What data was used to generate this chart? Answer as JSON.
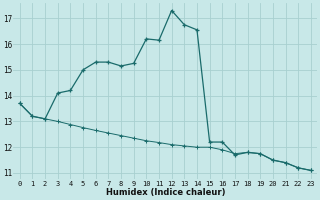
{
  "xlabel": "Humidex (Indice chaleur)",
  "background_color": "#c8e8e8",
  "grid_color": "#a8d0d0",
  "line_color": "#1a6b6b",
  "xlim": [
    -0.5,
    23.5
  ],
  "ylim": [
    10.75,
    17.6
  ],
  "yticks": [
    11,
    12,
    13,
    14,
    15,
    16,
    17
  ],
  "xticks": [
    0,
    1,
    2,
    3,
    4,
    5,
    6,
    7,
    8,
    9,
    10,
    11,
    12,
    13,
    14,
    15,
    16,
    17,
    18,
    19,
    20,
    21,
    22,
    23
  ],
  "curve_peaked_x": [
    0,
    1,
    2,
    3,
    4,
    5,
    6,
    7,
    8,
    9,
    10,
    11,
    12,
    13,
    14,
    15,
    16,
    17,
    18,
    19,
    20,
    21,
    22,
    23
  ],
  "curve_peaked_y": [
    13.7,
    13.2,
    13.1,
    14.1,
    14.2,
    15.0,
    15.3,
    15.3,
    15.15,
    15.25,
    16.2,
    16.15,
    17.3,
    16.75,
    16.55,
    12.2,
    12.2,
    11.7,
    11.8,
    11.75,
    11.5,
    11.4,
    11.2,
    11.1
  ],
  "curve_flat_x": [
    0,
    1,
    2,
    3,
    4,
    5,
    6,
    7,
    8,
    9,
    10,
    11,
    12,
    13,
    14,
    15,
    16,
    17,
    18,
    19,
    20,
    21,
    22,
    23
  ],
  "curve_flat_y": [
    13.7,
    13.2,
    13.1,
    13.0,
    12.88,
    12.76,
    12.65,
    12.55,
    12.45,
    12.35,
    12.25,
    12.18,
    12.1,
    12.05,
    12.0,
    12.0,
    11.9,
    11.75,
    11.8,
    11.75,
    11.5,
    11.4,
    11.2,
    11.1
  ]
}
